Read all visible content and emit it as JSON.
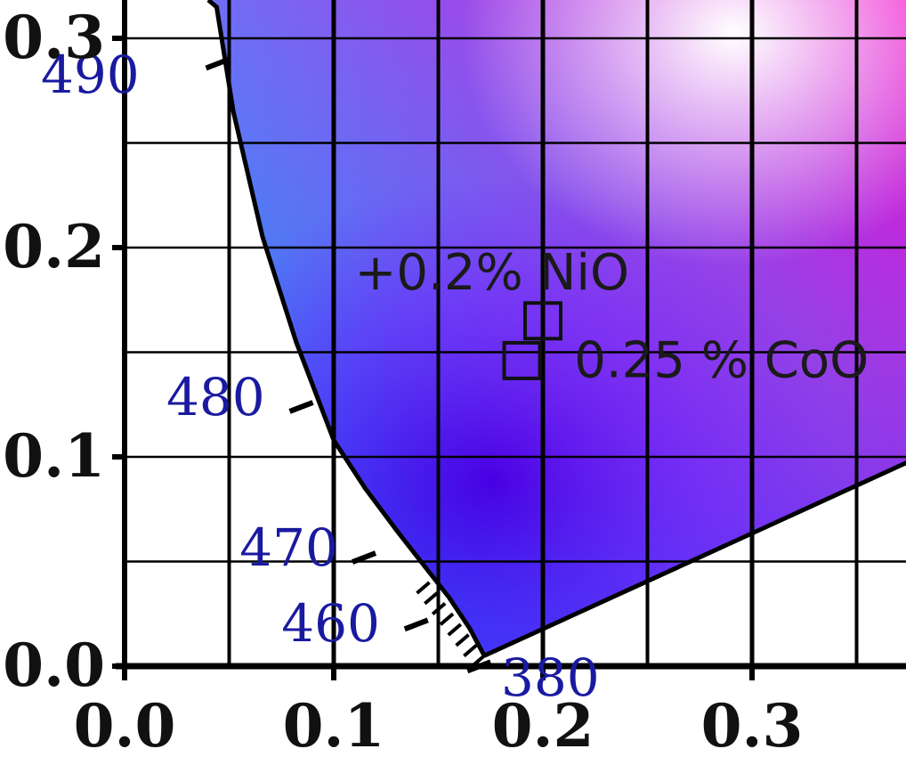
{
  "chart_data": {
    "type": "scatter",
    "title": "",
    "xlabel": "",
    "ylabel": "",
    "xlim": [
      -0.05,
      0.38
    ],
    "ylim": [
      0.0,
      0.32
    ],
    "x_ticks": [
      {
        "value": 0.0,
        "label": "0.0"
      },
      {
        "value": 0.1,
        "label": "0.1"
      },
      {
        "value": 0.2,
        "label": "0.2"
      },
      {
        "value": 0.3,
        "label": "0.3"
      }
    ],
    "y_ticks": [
      {
        "value": 0.0,
        "label": "0.0"
      },
      {
        "value": 0.1,
        "label": "0.1"
      },
      {
        "value": 0.2,
        "label": "0.2"
      },
      {
        "value": 0.3,
        "label": "0.3"
      }
    ],
    "grid": true,
    "spectral_locus": [
      {
        "x": 0.172,
        "y": 0.005
      },
      {
        "x": 0.165,
        "y": 0.018
      },
      {
        "x": 0.155,
        "y": 0.033
      },
      {
        "x": 0.144,
        "y": 0.047
      },
      {
        "x": 0.13,
        "y": 0.065
      },
      {
        "x": 0.115,
        "y": 0.085
      },
      {
        "x": 0.1,
        "y": 0.108
      },
      {
        "x": 0.082,
        "y": 0.155
      },
      {
        "x": 0.066,
        "y": 0.205
      },
      {
        "x": 0.052,
        "y": 0.265
      },
      {
        "x": 0.044,
        "y": 0.315
      }
    ],
    "purple_line": [
      {
        "x": 0.172,
        "y": 0.005
      },
      {
        "x": 0.38,
        "y": 0.1
      }
    ],
    "wavelength_labels": [
      {
        "label": "490",
        "x": 0.05,
        "y": 0.29,
        "lx": -0.04,
        "ly": 0.274
      },
      {
        "label": "480",
        "x": 0.09,
        "y": 0.126,
        "lx": 0.02,
        "ly": 0.12
      },
      {
        "label": "470",
        "x": 0.12,
        "y": 0.054,
        "lx": 0.055,
        "ly": 0.048
      },
      {
        "label": "460",
        "x": 0.145,
        "y": 0.022,
        "lx": 0.075,
        "ly": 0.012
      },
      {
        "label": "380",
        "x": 0.175,
        "y": 0.002,
        "lx": 0.18,
        "ly": -0.014
      }
    ],
    "points": [
      {
        "name": "+0.2% NiO",
        "x": 0.2,
        "y": 0.165,
        "lx": 0.11,
        "ly": 0.18
      },
      {
        "name": "0.25 % CoO",
        "x": 0.19,
        "y": 0.146,
        "lx": 0.215,
        "ly": 0.138
      }
    ],
    "colors": {
      "cyan": "#00f0ff",
      "blue": "#0a00d8",
      "magenta": "#ff00d0",
      "violet": "#9a00f0",
      "white": "#ffffff",
      "wavelength_text": "#1a1aa0",
      "grid": "#000000"
    }
  }
}
